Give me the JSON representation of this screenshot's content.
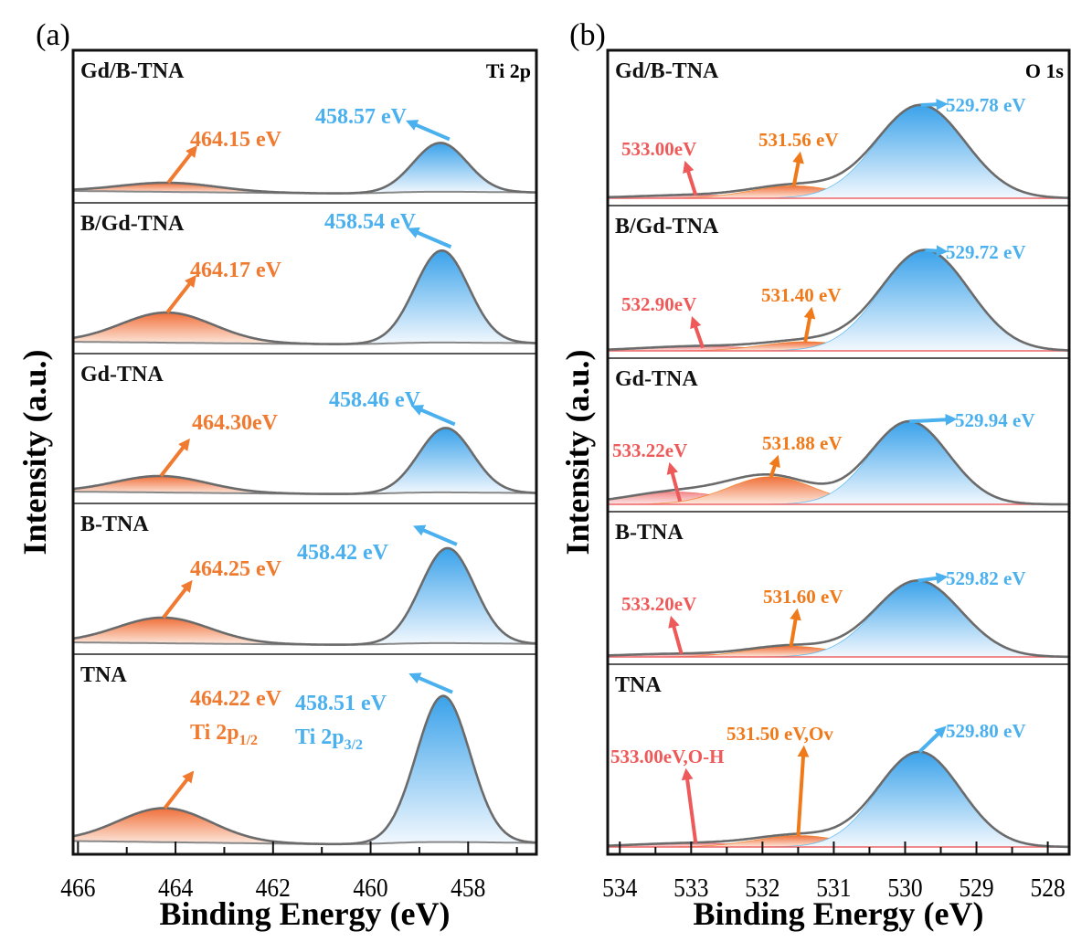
{
  "chart_data": [
    {
      "type": "area",
      "panel_label": "(a)",
      "title": "Ti 2p",
      "xlabel": "Binding Energy (eV)",
      "ylabel": "Intensity (a.u.)",
      "xlim": [
        466.1,
        456.6
      ],
      "x_reversed": true,
      "xticks": [
        466,
        464,
        462,
        460,
        458
      ],
      "colors": {
        "ti2p12": "#f07a30",
        "ti2p32": "#4ab0ee",
        "envelope": "#6b6b6b"
      },
      "series": [
        {
          "name": "Gd/B-TNA",
          "peaks": [
            {
              "center": 464.15,
              "label": "464.15 eV",
              "role": "ti2p12",
              "intensity": 0.06,
              "sigma": 1.0
            },
            {
              "center": 458.57,
              "label": "458.57 eV",
              "role": "ti2p32",
              "intensity": 0.32,
              "sigma": 0.55
            }
          ]
        },
        {
          "name": "B/Gd-TNA",
          "peaks": [
            {
              "center": 464.17,
              "label": "464.17 eV",
              "role": "ti2p12",
              "intensity": 0.2,
              "sigma": 0.95
            },
            {
              "center": 458.54,
              "label": "458.54 eV",
              "role": "ti2p32",
              "intensity": 0.61,
              "sigma": 0.55
            }
          ]
        },
        {
          "name": "Gd-TNA",
          "peaks": [
            {
              "center": 464.3,
              "label": "464.30eV",
              "role": "ti2p12",
              "intensity": 0.11,
              "sigma": 0.95
            },
            {
              "center": 458.46,
              "label": "458.46 eV",
              "role": "ti2p32",
              "intensity": 0.43,
              "sigma": 0.55
            }
          ]
        },
        {
          "name": "B-TNA",
          "peaks": [
            {
              "center": 464.25,
              "label": "464.25 eV",
              "role": "ti2p12",
              "intensity": 0.17,
              "sigma": 0.95
            },
            {
              "center": 458.42,
              "label": "458.42 eV",
              "role": "ti2p32",
              "intensity": 0.63,
              "sigma": 0.55
            }
          ]
        },
        {
          "name": "TNA",
          "peaks": [
            {
              "center": 464.22,
              "label": "464.22 eV",
              "sublabel": "Ti 2p",
              "sub": "1/2",
              "role": "ti2p12",
              "intensity": 0.17,
              "sigma": 0.95
            },
            {
              "center": 458.51,
              "label": "458.51 eV",
              "sublabel": "Ti 2p",
              "sub": "3/2",
              "role": "ti2p32",
              "intensity": 0.73,
              "sigma": 0.55
            }
          ]
        }
      ]
    },
    {
      "type": "area",
      "panel_label": "(b)",
      "title": "O 1s",
      "xlabel": "Binding Energy (eV)",
      "ylabel": "Intensity (a.u.)",
      "xlim": [
        534.17,
        527.7
      ],
      "x_reversed": true,
      "xticks": [
        534,
        533,
        532,
        531,
        530,
        529,
        528
      ],
      "colors": {
        "oh": "#ee5a5a",
        "ov": "#f07a1a",
        "lattice": "#4ab0ee",
        "envelope": "#6b6b6b"
      },
      "series": [
        {
          "name": "Gd/B-TNA",
          "peaks": [
            {
              "center": 533.0,
              "label": "533.00eV",
              "role": "oh",
              "intensity": 0.02,
              "sigma": 0.8
            },
            {
              "center": 531.56,
              "label": "531.56 eV",
              "role": "ov",
              "intensity": 0.08,
              "sigma": 0.6
            },
            {
              "center": 529.78,
              "label": "529.78 eV",
              "role": "lattice",
              "intensity": 0.6,
              "sigma": 0.62
            }
          ]
        },
        {
          "name": "B/Gd-TNA",
          "peaks": [
            {
              "center": 532.9,
              "label": "532.90eV",
              "role": "oh",
              "intensity": 0.03,
              "sigma": 0.8
            },
            {
              "center": 531.4,
              "label": "531.40 eV",
              "role": "ov",
              "intensity": 0.06,
              "sigma": 0.6
            },
            {
              "center": 529.72,
              "label": "529.72 eV",
              "role": "lattice",
              "intensity": 0.66,
              "sigma": 0.62
            }
          ]
        },
        {
          "name": "Gd-TNA",
          "peaks": [
            {
              "center": 533.22,
              "label": "533.22eV",
              "role": "oh",
              "intensity": 0.08,
              "sigma": 0.7
            },
            {
              "center": 531.88,
              "label": "531.88 eV",
              "role": "ov",
              "intensity": 0.18,
              "sigma": 0.6
            },
            {
              "center": 529.94,
              "label": "529.94 eV",
              "role": "lattice",
              "intensity": 0.54,
              "sigma": 0.55
            }
          ]
        },
        {
          "name": "B-TNA",
          "peaks": [
            {
              "center": 533.2,
              "label": "533.20eV",
              "role": "oh",
              "intensity": 0.02,
              "sigma": 0.8
            },
            {
              "center": 531.6,
              "label": "531.60 eV",
              "role": "ov",
              "intensity": 0.07,
              "sigma": 0.6
            },
            {
              "center": 529.82,
              "label": "529.82 eV",
              "role": "lattice",
              "intensity": 0.5,
              "sigma": 0.6
            }
          ]
        },
        {
          "name": "TNA",
          "peaks": [
            {
              "center": 533.0,
              "label": "533.00eV,O-H",
              "role": "oh",
              "intensity": 0.02,
              "sigma": 0.8
            },
            {
              "center": 531.5,
              "label": "531.50 eV,Ov",
              "role": "ov",
              "intensity": 0.06,
              "sigma": 0.6
            },
            {
              "center": 529.8,
              "label": "529.80 eV",
              "role": "lattice",
              "intensity": 0.5,
              "sigma": 0.58
            }
          ]
        }
      ]
    }
  ]
}
